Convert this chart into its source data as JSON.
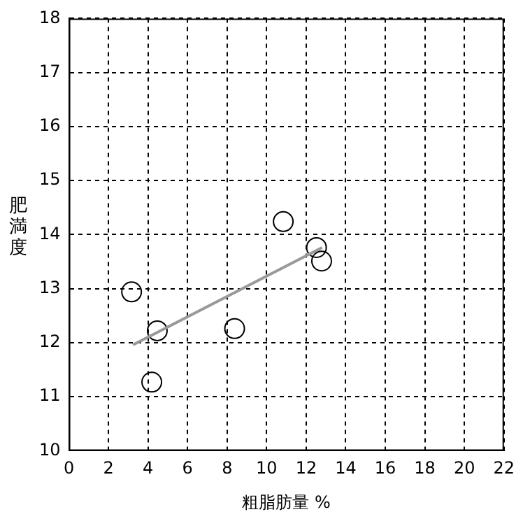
{
  "chart_data": {
    "type": "scatter",
    "xlabel": "粗脂肪量 %",
    "ylabel": "肥満度",
    "xlim": [
      0,
      22
    ],
    "xticks": [
      0,
      2,
      4,
      6,
      8,
      10,
      12,
      14,
      16,
      18,
      20,
      22
    ],
    "ylim": [
      10,
      18
    ],
    "yticks": [
      10,
      11,
      12,
      13,
      14,
      15,
      16,
      17,
      18
    ],
    "grid": true,
    "legend": false,
    "marker": "circle",
    "series": [
      {
        "color": "#000000",
        "x": [
          3.17,
          4.47,
          4.19,
          8.38,
          10.84,
          12.52,
          12.78
        ],
        "values": [
          12.94,
          12.22,
          11.27,
          12.26,
          14.24,
          13.76,
          13.51
        ]
      },
      {
        "type": "line",
        "color": "#999999",
        "marker": "none",
        "line_style": "solid",
        "x": [
          3.24,
          12.8
        ],
        "values": [
          11.96,
          13.76
        ]
      }
    ]
  }
}
